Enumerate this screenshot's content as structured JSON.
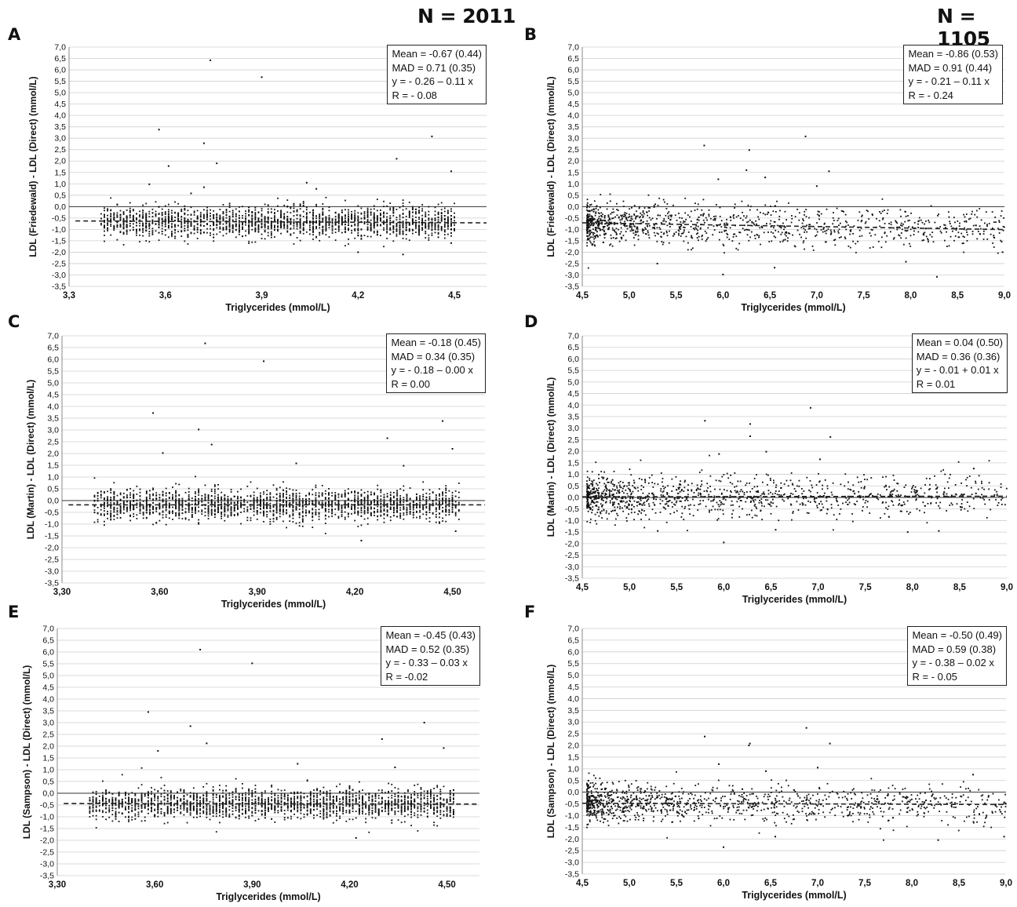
{
  "headers": {
    "left": "N = 2011",
    "right": "N = 1105"
  },
  "chart_data": [
    {
      "panel": "A",
      "type": "scatter",
      "xlabel": "Triglycerides (mmol/L)",
      "ylabel": "LDL (Friedewald) - LDL (Direct) (mmol/L)",
      "xlim": [
        3.3,
        4.6
      ],
      "ylim": [
        -3.5,
        7.0
      ],
      "xticks": [
        "3,3",
        "3,6",
        "3,9",
        "4,2",
        "4,5"
      ],
      "xtick_values": [
        3.3,
        3.6,
        3.9,
        4.2,
        4.5
      ],
      "yticks": [
        "7,0",
        "6,5",
        "6,0",
        "5,5",
        "5,0",
        "4,5",
        "4,0",
        "3,5",
        "3,0",
        "2,5",
        "2,0",
        "1,5",
        "1,0",
        "0,5",
        "0,0",
        "-0,5",
        "-1,0",
        "-1,5",
        "-2,0",
        "-2,5",
        "-3,0",
        "-3,5"
      ],
      "grid": true,
      "stats": [
        "Mean = -0.67 (0.44)",
        "MAD = 0.71 (0.35)",
        "y = - 0.26 – 0.11 x",
        "R = - 0.08"
      ],
      "regression": {
        "intercept": -0.26,
        "slope": -0.11
      },
      "x_range": [
        3.4,
        4.5
      ],
      "n_points": 2011,
      "center": -0.67,
      "spread": 0.33,
      "outliers": [
        [
          3.74,
          6.42
        ],
        [
          3.9,
          5.68
        ],
        [
          3.58,
          3.38
        ],
        [
          4.43,
          3.08
        ],
        [
          3.72,
          2.78
        ],
        [
          4.32,
          2.1
        ],
        [
          3.76,
          1.9
        ],
        [
          3.61,
          1.78
        ],
        [
          4.49,
          1.55
        ],
        [
          4.04,
          1.05
        ],
        [
          3.55,
          0.98
        ],
        [
          4.07,
          0.78
        ],
        [
          3.72,
          0.85
        ],
        [
          3.68,
          0.58
        ],
        [
          4.2,
          -2.0
        ],
        [
          4.34,
          -2.1
        ],
        [
          4.49,
          -1.6
        ]
      ]
    },
    {
      "panel": "B",
      "type": "scatter",
      "xlabel": "Triglycerides (mmol/L)",
      "ylabel": "LDL (Friedewald) - LDL (Direct) (mmol/L)",
      "xlim": [
        4.5,
        9.0
      ],
      "ylim": [
        -3.5,
        7.0
      ],
      "xticks": [
        "4,5",
        "5,0",
        "5,5",
        "6,0",
        "6,5",
        "7,0",
        "7,5",
        "8,0",
        "8,5",
        "9,0"
      ],
      "xtick_values": [
        4.5,
        5.0,
        5.5,
        6.0,
        6.5,
        7.0,
        7.5,
        8.0,
        8.5,
        9.0
      ],
      "yticks": [
        "7,0",
        "6,5",
        "6,0",
        "5,5",
        "5,0",
        "4,5",
        "4,0",
        "3,5",
        "3,0",
        "2,5",
        "2,0",
        "1,5",
        "1,0",
        "0,5",
        "0,0",
        "-0,5",
        "-1,0",
        "-1,5",
        "-2,0",
        "-2,5",
        "-3,0",
        "-3,5"
      ],
      "grid": true,
      "stats": [
        "Mean = -0.86 (0.53)",
        "MAD = 0.91 (0.44)",
        "y = - 0.21 – 0.11 x",
        "R = - 0.24"
      ],
      "regression": {
        "intercept": -0.21,
        "slope": -0.11
      },
      "x_range": [
        4.55,
        9.0
      ],
      "n_points": 1105,
      "center": -0.86,
      "spread": 0.45,
      "outliers": [
        [
          5.8,
          2.68
        ],
        [
          6.28,
          2.48
        ],
        [
          6.88,
          3.08
        ],
        [
          6.25,
          1.6
        ],
        [
          7.13,
          1.55
        ],
        [
          6.45,
          1.28
        ],
        [
          5.95,
          1.2
        ],
        [
          7.0,
          0.9
        ],
        [
          5.3,
          -2.5
        ],
        [
          6.0,
          -2.98
        ],
        [
          6.55,
          -2.68
        ],
        [
          8.28,
          -3.08
        ],
        [
          7.95,
          -2.42
        ],
        [
          8.98,
          -2.0
        ]
      ]
    },
    {
      "panel": "C",
      "type": "scatter",
      "xlabel": "Triglycerides (mmol/L)",
      "ylabel": "LDL (Martin) - LDL (Direct) (mmol/L)",
      "xlim": [
        3.3,
        4.6
      ],
      "ylim": [
        -3.5,
        7.0
      ],
      "xticks": [
        "3,30",
        "3,60",
        "3,90",
        "4,20",
        "4,50"
      ],
      "xtick_values": [
        3.3,
        3.6,
        3.9,
        4.2,
        4.5
      ],
      "yticks": [
        "7,0",
        "6,5",
        "6,0",
        "5,5",
        "5,0",
        "4,5",
        "4,0",
        "3,5",
        "3,0",
        "2,5",
        "2,0",
        "1,5",
        "1,0",
        "0,5",
        "0,0",
        "-0,5",
        "-1,0",
        "-1,5",
        "-2,0",
        "-2,5",
        "-3,0",
        "-3,5"
      ],
      "grid": true,
      "stats": [
        "Mean = -0.18 (0.45)",
        "MAD = 0.34 (0.35)",
        "y = - 0.18 – 0.00 x",
        "R = 0.00"
      ],
      "regression": {
        "intercept": -0.18,
        "slope": 0.0
      },
      "x_range": [
        3.4,
        4.52
      ],
      "n_points": 2011,
      "center": -0.18,
      "spread": 0.33,
      "outliers": [
        [
          3.74,
          6.68
        ],
        [
          3.92,
          5.92
        ],
        [
          3.58,
          3.72
        ],
        [
          4.47,
          3.38
        ],
        [
          3.72,
          3.02
        ],
        [
          4.3,
          2.65
        ],
        [
          3.76,
          2.38
        ],
        [
          3.61,
          2.02
        ],
        [
          4.5,
          2.2
        ],
        [
          4.02,
          1.58
        ],
        [
          4.35,
          1.48
        ],
        [
          4.22,
          -1.7
        ],
        [
          4.51,
          -1.3
        ]
      ]
    },
    {
      "panel": "D",
      "type": "scatter",
      "xlabel": "Triglycerides (mmol/L)",
      "ylabel": "LDL (Martin) - LDL (Direct) (mmol/L)",
      "xlim": [
        4.5,
        9.0
      ],
      "ylim": [
        -3.5,
        7.0
      ],
      "xticks": [
        "4,5",
        "5,0",
        "5,5",
        "6,0",
        "6,5",
        "7,0",
        "7,5",
        "8,0",
        "8,5",
        "9,0"
      ],
      "xtick_values": [
        4.5,
        5.0,
        5.5,
        6.0,
        6.5,
        7.0,
        7.5,
        8.0,
        8.5,
        9.0
      ],
      "yticks": [
        "7,0",
        "6,5",
        "6,0",
        "5,5",
        "5,0",
        "4,5",
        "4,0",
        "3,5",
        "3,0",
        "2,5",
        "2,0",
        "1,5",
        "1,0",
        "0,5",
        "0,0",
        "-0,5",
        "-1,0",
        "-1,5",
        "-2,0",
        "-2,5",
        "-3,0",
        "-3,5"
      ],
      "grid": true,
      "stats": [
        "Mean = 0.04 (0.50)",
        "MAD = 0.36 (0.36)",
        "y = - 0.01 + 0.01 x",
        "R = 0.01"
      ],
      "regression": {
        "intercept": -0.01,
        "slope": 0.01
      },
      "x_range": [
        4.55,
        9.0
      ],
      "n_points": 1105,
      "center": 0.04,
      "spread": 0.45,
      "outliers": [
        [
          5.8,
          3.32
        ],
        [
          6.28,
          3.18
        ],
        [
          6.28,
          2.65
        ],
        [
          6.92,
          3.88
        ],
        [
          7.13,
          2.62
        ],
        [
          6.45,
          1.98
        ],
        [
          5.95,
          1.88
        ],
        [
          7.02,
          1.65
        ],
        [
          8.65,
          1.25
        ],
        [
          6.0,
          -1.95
        ],
        [
          6.55,
          -1.4
        ],
        [
          7.95,
          -1.5
        ],
        [
          8.28,
          -1.45
        ],
        [
          5.3,
          -1.45
        ]
      ]
    },
    {
      "panel": "E",
      "type": "scatter",
      "xlabel": "Triglycerides (mmol/L)",
      "ylabel": "LDL (Sampson) - LDL (Direct) (mmol/L)",
      "xlim": [
        3.3,
        4.6
      ],
      "ylim": [
        -3.5,
        7.0
      ],
      "xticks": [
        "3,30",
        "3,60",
        "3,90",
        "4,20",
        "4,50"
      ],
      "xtick_values": [
        3.3,
        3.6,
        3.9,
        4.2,
        4.5
      ],
      "yticks": [
        "7,0",
        "6,5",
        "6,0",
        "5,5",
        "5,0",
        "4,5",
        "4,0",
        "3,5",
        "3,0",
        "2,5",
        "2,0",
        "1,5",
        "1,0",
        "0,5",
        "0,0",
        "-0,5",
        "-1,0",
        "-1,5",
        "-2,0",
        "-2,5",
        "-3,0",
        "-3,5"
      ],
      "grid": true,
      "stats": [
        "Mean = -0.45 (0.43)",
        "MAD = 0.52 (0.35)",
        "y = - 0.33 – 0.03 x",
        "R = -0.02"
      ],
      "regression": {
        "intercept": -0.33,
        "slope": -0.03
      },
      "x_range": [
        3.4,
        4.52
      ],
      "n_points": 2011,
      "center": -0.45,
      "spread": 0.33,
      "outliers": [
        [
          3.74,
          6.1
        ],
        [
          3.9,
          5.52
        ],
        [
          3.58,
          3.45
        ],
        [
          4.43,
          3.0
        ],
        [
          3.71,
          2.85
        ],
        [
          4.3,
          2.3
        ],
        [
          3.76,
          2.12
        ],
        [
          4.49,
          1.92
        ],
        [
          3.61,
          1.8
        ],
        [
          4.04,
          1.25
        ],
        [
          4.34,
          1.1
        ],
        [
          4.22,
          -1.9
        ]
      ]
    },
    {
      "panel": "F",
      "type": "scatter",
      "xlabel": "Triglycerides (mmol/L)",
      "ylabel": "LDL (Sampson) - LDL (Direct) (mmol/L)",
      "xlim": [
        4.5,
        9.0
      ],
      "ylim": [
        -3.5,
        7.0
      ],
      "xticks": [
        "4,5",
        "5,0",
        "5,5",
        "6,0",
        "6,5",
        "7,0",
        "7,5",
        "8,0",
        "8,5",
        "9,0"
      ],
      "xtick_values": [
        4.5,
        5.0,
        5.5,
        6.0,
        6.5,
        7.0,
        7.5,
        8.0,
        8.5,
        9.0
      ],
      "yticks": [
        "7,0",
        "6,5",
        "6,0",
        "5,5",
        "5,0",
        "4,5",
        "4,0",
        "3,5",
        "3,0",
        "2,5",
        "2,0",
        "1,5",
        "1,0",
        "0,5",
        "0,0",
        "-0,5",
        "-1,0",
        "-1,5",
        "-2,0",
        "-2,5",
        "-3,0",
        "-3,5"
      ],
      "grid": true,
      "stats": [
        "Mean = -0.50 (0.49)",
        "MAD = 0.59 (0.38)",
        "y = - 0.38 – 0.02 x",
        "R = - 0.05"
      ],
      "regression": {
        "intercept": -0.38,
        "slope": -0.02
      },
      "x_range": [
        4.55,
        9.0
      ],
      "n_points": 1105,
      "center": -0.5,
      "spread": 0.42,
      "outliers": [
        [
          5.8,
          2.38
        ],
        [
          6.28,
          2.08
        ],
        [
          6.27,
          2.0
        ],
        [
          6.88,
          2.75
        ],
        [
          7.13,
          2.08
        ],
        [
          6.45,
          0.9
        ],
        [
          5.95,
          1.2
        ],
        [
          7.0,
          1.05
        ],
        [
          8.65,
          0.75
        ],
        [
          6.0,
          -2.35
        ],
        [
          6.55,
          -1.9
        ],
        [
          8.28,
          -2.05
        ],
        [
          8.98,
          -1.9
        ]
      ]
    }
  ]
}
